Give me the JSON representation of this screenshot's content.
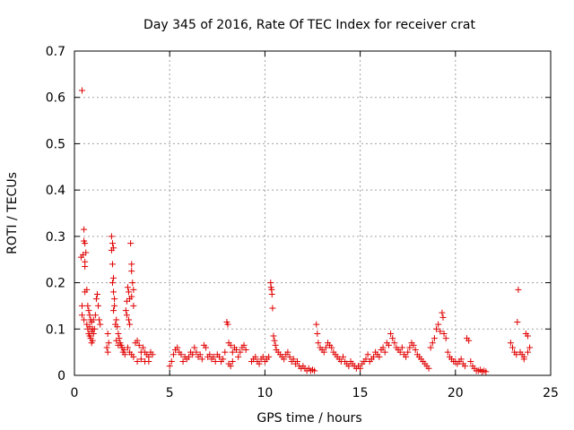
{
  "chart_data": {
    "type": "scatter",
    "title": "Day 345 of 2016, Rate Of TEC Index for receiver crat",
    "xlabel": "GPS time / hours",
    "ylabel": "ROTI / TECUs",
    "xlim": [
      0,
      25
    ],
    "ylim": [
      0,
      0.7
    ],
    "xticks": [
      0,
      5,
      10,
      15,
      20,
      25
    ],
    "yticks": [
      0,
      0.1,
      0.2,
      0.3,
      0.4,
      0.5,
      0.6,
      0.7
    ],
    "xtick_labels": [
      "0",
      "5",
      "10",
      "15",
      "20",
      "25"
    ],
    "ytick_labels": [
      "0",
      "0.1",
      "0.2",
      "0.3",
      "0.4",
      "0.5",
      "0.6",
      "0.7"
    ],
    "grid": true,
    "marker": "+",
    "color": "#e00000",
    "series": [
      {
        "name": "ROTI",
        "points": [
          [
            0.4,
            0.615
          ],
          [
            0.35,
            0.255
          ],
          [
            0.45,
            0.26
          ],
          [
            0.5,
            0.29
          ],
          [
            0.55,
            0.285
          ],
          [
            0.5,
            0.315
          ],
          [
            0.6,
            0.265
          ],
          [
            0.55,
            0.245
          ],
          [
            0.55,
            0.235
          ],
          [
            0.4,
            0.15
          ],
          [
            0.4,
            0.13
          ],
          [
            0.5,
            0.12
          ],
          [
            0.55,
            0.18
          ],
          [
            0.65,
            0.185
          ],
          [
            0.7,
            0.15
          ],
          [
            0.75,
            0.14
          ],
          [
            0.8,
            0.13
          ],
          [
            0.85,
            0.12
          ],
          [
            0.9,
            0.115
          ],
          [
            0.7,
            0.1
          ],
          [
            0.75,
            0.09
          ],
          [
            0.8,
            0.085
          ],
          [
            0.85,
            0.08
          ],
          [
            0.9,
            0.07
          ],
          [
            0.95,
            0.075
          ],
          [
            1.0,
            0.09
          ],
          [
            1.05,
            0.1
          ],
          [
            1.1,
            0.13
          ],
          [
            1.15,
            0.165
          ],
          [
            1.2,
            0.175
          ],
          [
            1.25,
            0.15
          ],
          [
            1.3,
            0.12
          ],
          [
            1.35,
            0.11
          ],
          [
            0.65,
            0.11
          ],
          [
            0.95,
            0.1
          ],
          [
            1.0,
            0.12
          ],
          [
            0.8,
            0.105
          ],
          [
            0.9,
            0.095
          ],
          [
            1.75,
            0.09
          ],
          [
            1.8,
            0.07
          ],
          [
            1.7,
            0.06
          ],
          [
            1.75,
            0.05
          ],
          [
            1.95,
            0.3
          ],
          [
            2.0,
            0.285
          ],
          [
            1.95,
            0.27
          ],
          [
            2.05,
            0.275
          ],
          [
            2.0,
            0.24
          ],
          [
            2.05,
            0.21
          ],
          [
            2.0,
            0.2
          ],
          [
            2.05,
            0.18
          ],
          [
            2.1,
            0.165
          ],
          [
            2.1,
            0.15
          ],
          [
            2.05,
            0.14
          ],
          [
            2.2,
            0.12
          ],
          [
            2.15,
            0.11
          ],
          [
            2.25,
            0.105
          ],
          [
            2.3,
            0.09
          ],
          [
            2.35,
            0.08
          ],
          [
            2.4,
            0.07
          ],
          [
            2.45,
            0.065
          ],
          [
            2.5,
            0.06
          ],
          [
            2.55,
            0.05
          ],
          [
            2.6,
            0.055
          ],
          [
            2.65,
            0.045
          ],
          [
            2.2,
            0.075
          ],
          [
            2.3,
            0.065
          ],
          [
            2.8,
            0.19
          ],
          [
            2.75,
            0.16
          ],
          [
            2.85,
            0.18
          ],
          [
            2.9,
            0.165
          ],
          [
            2.7,
            0.14
          ],
          [
            2.75,
            0.13
          ],
          [
            2.85,
            0.12
          ],
          [
            2.9,
            0.11
          ],
          [
            2.95,
            0.285
          ],
          [
            3.0,
            0.24
          ],
          [
            3.0,
            0.225
          ],
          [
            3.05,
            0.2
          ],
          [
            3.1,
            0.185
          ],
          [
            3.0,
            0.17
          ],
          [
            3.1,
            0.15
          ],
          [
            2.8,
            0.06
          ],
          [
            2.9,
            0.05
          ],
          [
            3.0,
            0.045
          ],
          [
            3.1,
            0.04
          ],
          [
            3.2,
            0.07
          ],
          [
            3.3,
            0.075
          ],
          [
            3.4,
            0.065
          ],
          [
            3.5,
            0.05
          ],
          [
            3.6,
            0.06
          ],
          [
            3.7,
            0.05
          ],
          [
            3.8,
            0.045
          ],
          [
            3.9,
            0.04
          ],
          [
            4.0,
            0.05
          ],
          [
            4.1,
            0.045
          ],
          [
            3.3,
            0.03
          ],
          [
            3.5,
            0.035
          ],
          [
            3.7,
            0.03
          ],
          [
            3.9,
            0.03
          ],
          [
            5.0,
            0.02
          ],
          [
            5.1,
            0.03
          ],
          [
            5.2,
            0.045
          ],
          [
            5.3,
            0.055
          ],
          [
            5.4,
            0.06
          ],
          [
            5.5,
            0.05
          ],
          [
            5.6,
            0.045
          ],
          [
            5.7,
            0.03
          ],
          [
            5.8,
            0.04
          ],
          [
            5.9,
            0.035
          ],
          [
            6.0,
            0.04
          ],
          [
            6.1,
            0.05
          ],
          [
            6.2,
            0.045
          ],
          [
            6.3,
            0.06
          ],
          [
            6.4,
            0.05
          ],
          [
            6.5,
            0.04
          ],
          [
            6.6,
            0.045
          ],
          [
            6.7,
            0.035
          ],
          [
            6.8,
            0.065
          ],
          [
            6.9,
            0.06
          ],
          [
            7.0,
            0.04
          ],
          [
            7.1,
            0.045
          ],
          [
            7.2,
            0.035
          ],
          [
            7.3,
            0.04
          ],
          [
            7.4,
            0.03
          ],
          [
            7.5,
            0.045
          ],
          [
            7.6,
            0.04
          ],
          [
            7.7,
            0.03
          ],
          [
            7.8,
            0.035
          ],
          [
            7.9,
            0.05
          ],
          [
            8.0,
            0.115
          ],
          [
            8.05,
            0.11
          ],
          [
            8.1,
            0.07
          ],
          [
            8.2,
            0.065
          ],
          [
            8.3,
            0.05
          ],
          [
            8.4,
            0.06
          ],
          [
            8.5,
            0.055
          ],
          [
            8.6,
            0.04
          ],
          [
            8.7,
            0.05
          ],
          [
            8.8,
            0.06
          ],
          [
            8.9,
            0.065
          ],
          [
            9.0,
            0.055
          ],
          [
            8.2,
            0.02
          ],
          [
            8.1,
            0.025
          ],
          [
            8.3,
            0.03
          ],
          [
            9.3,
            0.03
          ],
          [
            9.4,
            0.035
          ],
          [
            9.5,
            0.04
          ],
          [
            9.6,
            0.03
          ],
          [
            9.7,
            0.025
          ],
          [
            9.8,
            0.035
          ],
          [
            9.9,
            0.04
          ],
          [
            10.0,
            0.03
          ],
          [
            10.1,
            0.035
          ],
          [
            10.2,
            0.04
          ],
          [
            10.3,
            0.2
          ],
          [
            10.32,
            0.19
          ],
          [
            10.35,
            0.185
          ],
          [
            10.37,
            0.175
          ],
          [
            10.4,
            0.145
          ],
          [
            10.45,
            0.085
          ],
          [
            10.5,
            0.075
          ],
          [
            10.55,
            0.065
          ],
          [
            10.6,
            0.055
          ],
          [
            10.7,
            0.05
          ],
          [
            10.8,
            0.045
          ],
          [
            10.9,
            0.04
          ],
          [
            11.0,
            0.035
          ],
          [
            11.1,
            0.045
          ],
          [
            11.2,
            0.05
          ],
          [
            11.3,
            0.04
          ],
          [
            11.4,
            0.03
          ],
          [
            11.5,
            0.035
          ],
          [
            11.6,
            0.025
          ],
          [
            11.7,
            0.03
          ],
          [
            11.8,
            0.02
          ],
          [
            11.9,
            0.015
          ],
          [
            12.0,
            0.02
          ],
          [
            12.1,
            0.015
          ],
          [
            12.2,
            0.01
          ],
          [
            12.3,
            0.015
          ],
          [
            12.4,
            0.01
          ],
          [
            12.5,
            0.012
          ],
          [
            12.6,
            0.01
          ],
          [
            12.7,
            0.11
          ],
          [
            12.75,
            0.09
          ],
          [
            12.8,
            0.07
          ],
          [
            12.9,
            0.06
          ],
          [
            13.0,
            0.055
          ],
          [
            13.1,
            0.05
          ],
          [
            13.2,
            0.06
          ],
          [
            13.3,
            0.07
          ],
          [
            13.4,
            0.065
          ],
          [
            13.5,
            0.06
          ],
          [
            13.6,
            0.05
          ],
          [
            13.7,
            0.045
          ],
          [
            13.8,
            0.04
          ],
          [
            13.9,
            0.035
          ],
          [
            14.0,
            0.03
          ],
          [
            14.1,
            0.04
          ],
          [
            14.2,
            0.03
          ],
          [
            14.3,
            0.025
          ],
          [
            14.4,
            0.02
          ],
          [
            14.5,
            0.03
          ],
          [
            14.6,
            0.025
          ],
          [
            14.7,
            0.02
          ],
          [
            14.8,
            0.015
          ],
          [
            14.9,
            0.02
          ],
          [
            15.0,
            0.015
          ],
          [
            15.1,
            0.025
          ],
          [
            15.2,
            0.03
          ],
          [
            15.3,
            0.035
          ],
          [
            15.4,
            0.045
          ],
          [
            15.5,
            0.03
          ],
          [
            15.6,
            0.035
          ],
          [
            15.7,
            0.04
          ],
          [
            15.8,
            0.05
          ],
          [
            15.9,
            0.045
          ],
          [
            16.0,
            0.04
          ],
          [
            16.1,
            0.055
          ],
          [
            16.2,
            0.06
          ],
          [
            16.3,
            0.05
          ],
          [
            16.4,
            0.07
          ],
          [
            16.5,
            0.065
          ],
          [
            16.6,
            0.09
          ],
          [
            16.7,
            0.08
          ],
          [
            16.8,
            0.07
          ],
          [
            16.9,
            0.06
          ],
          [
            17.0,
            0.055
          ],
          [
            17.1,
            0.05
          ],
          [
            17.2,
            0.06
          ],
          [
            17.3,
            0.045
          ],
          [
            17.4,
            0.04
          ],
          [
            17.5,
            0.05
          ],
          [
            17.6,
            0.06
          ],
          [
            17.7,
            0.07
          ],
          [
            17.8,
            0.065
          ],
          [
            17.9,
            0.055
          ],
          [
            18.0,
            0.045
          ],
          [
            18.1,
            0.04
          ],
          [
            18.2,
            0.035
          ],
          [
            18.3,
            0.03
          ],
          [
            18.4,
            0.025
          ],
          [
            18.5,
            0.02
          ],
          [
            18.6,
            0.015
          ],
          [
            18.7,
            0.06
          ],
          [
            18.8,
            0.07
          ],
          [
            18.9,
            0.08
          ],
          [
            19.0,
            0.1
          ],
          [
            19.1,
            0.11
          ],
          [
            19.2,
            0.095
          ],
          [
            19.3,
            0.135
          ],
          [
            19.35,
            0.125
          ],
          [
            19.4,
            0.09
          ],
          [
            19.5,
            0.08
          ],
          [
            19.6,
            0.05
          ],
          [
            19.7,
            0.04
          ],
          [
            19.8,
            0.035
          ],
          [
            19.9,
            0.03
          ],
          [
            20.0,
            0.03
          ],
          [
            20.1,
            0.025
          ],
          [
            20.2,
            0.03
          ],
          [
            20.3,
            0.035
          ],
          [
            20.4,
            0.025
          ],
          [
            20.5,
            0.02
          ],
          [
            20.6,
            0.08
          ],
          [
            20.7,
            0.075
          ],
          [
            20.8,
            0.03
          ],
          [
            20.9,
            0.02
          ],
          [
            21.0,
            0.015
          ],
          [
            21.1,
            0.01
          ],
          [
            21.2,
            0.01
          ],
          [
            21.3,
            0.012
          ],
          [
            21.4,
            0.008
          ],
          [
            21.5,
            0.01
          ],
          [
            21.6,
            0.008
          ],
          [
            22.9,
            0.07
          ],
          [
            23.0,
            0.06
          ],
          [
            23.1,
            0.05
          ],
          [
            23.2,
            0.045
          ],
          [
            23.25,
            0.115
          ],
          [
            23.3,
            0.185
          ],
          [
            23.4,
            0.05
          ],
          [
            23.5,
            0.045
          ],
          [
            23.6,
            0.04
          ],
          [
            23.7,
            0.09
          ],
          [
            23.8,
            0.085
          ],
          [
            23.9,
            0.06
          ],
          [
            23.6,
            0.035
          ],
          [
            23.8,
            0.05
          ]
        ]
      }
    ]
  }
}
